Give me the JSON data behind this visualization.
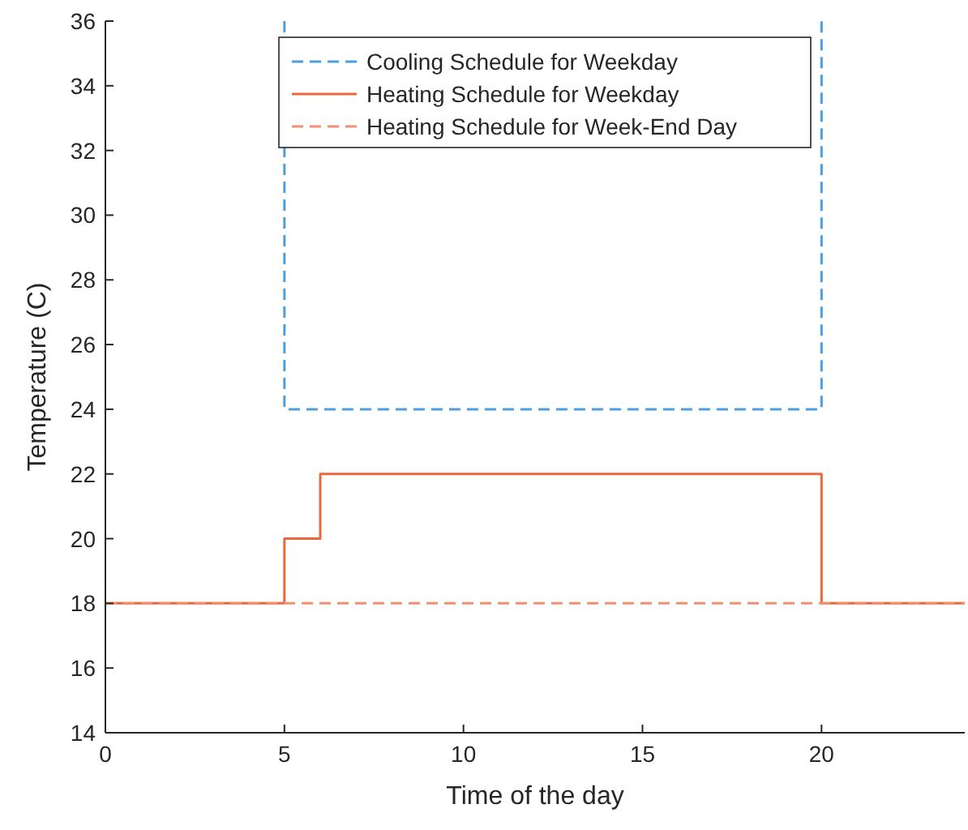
{
  "chart_data": {
    "type": "line",
    "xlabel": "Time of the day",
    "ylabel": "Temperature (C)",
    "xlim": [
      0,
      24
    ],
    "xticks": [
      0,
      5,
      10,
      15,
      20
    ],
    "ylim": [
      14,
      36
    ],
    "yticks": [
      14,
      16,
      18,
      20,
      22,
      24,
      26,
      28,
      30,
      32,
      34,
      36
    ],
    "legend": "top",
    "grid": false,
    "series": [
      {
        "name": "Cooling Schedule for Weekday",
        "color": "#4d9ee0",
        "line_style": "dashed",
        "x": [
          5,
          5,
          20,
          20
        ],
        "values": [
          36,
          24,
          24,
          36
        ]
      },
      {
        "name": "Heating Schedule for Weekday",
        "color": "#e8693c",
        "line_style": "solid",
        "x": [
          0,
          5,
          5,
          6,
          6,
          20,
          20,
          24
        ],
        "values": [
          18,
          18,
          20,
          20,
          22,
          22,
          18,
          18
        ]
      },
      {
        "name": "Heating Schedule for Week-End Day",
        "color": "#f29070",
        "line_style": "dashed",
        "x": [
          0,
          24
        ],
        "values": [
          18,
          18
        ]
      }
    ]
  }
}
